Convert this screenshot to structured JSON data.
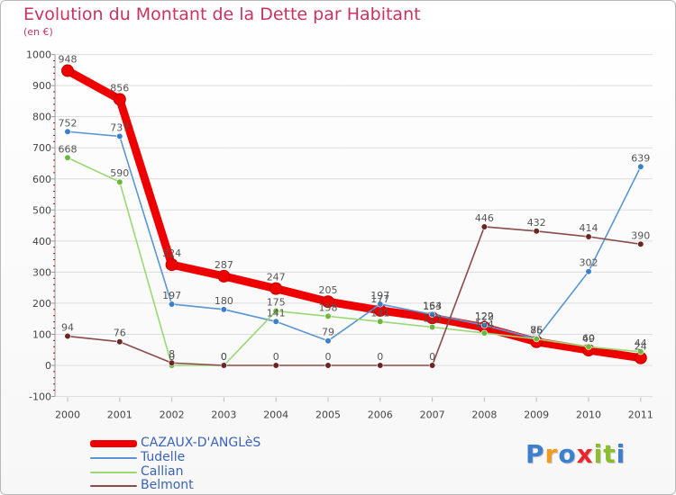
{
  "title": "Evolution du Montant de la Dette par Habitant",
  "unit": "(en €)",
  "logo": {
    "text": "Proxiti",
    "colors": [
      "#3d7fcf",
      "#f29b1d",
      "#3d7fcf",
      "#e8262b",
      "#8bbd2d",
      "#8bbd2d",
      "#3d7fcf"
    ]
  },
  "chart_data": {
    "type": "line",
    "title": "Evolution du Montant de la Dette par Habitant",
    "ylabel": "(en €)",
    "xlabel": "",
    "ylim": [
      -100,
      1000
    ],
    "yticks": [
      -100,
      0,
      100,
      200,
      300,
      400,
      500,
      600,
      700,
      800,
      900,
      1000
    ],
    "categories": [
      "2000",
      "2001",
      "2002",
      "2003",
      "2004",
      "2005",
      "2006",
      "2007",
      "2008",
      "2009",
      "2010",
      "2011"
    ],
    "series": [
      {
        "name": "CAZAUX-D'ANGLèS",
        "color": "#ee0000",
        "dot": "#ee0000",
        "bold": true,
        "values": [
          948,
          856,
          324,
          287,
          247,
          205,
          177,
          153,
          122,
          76,
          49,
          24
        ]
      },
      {
        "name": "Tudelle",
        "color": "#5a96d2",
        "dot": "#3c7fc8",
        "bold": false,
        "values": [
          752,
          737,
          197,
          180,
          141,
          79,
          197,
          164,
          129,
          86,
          302,
          639
        ]
      },
      {
        "name": "Callian",
        "color": "#9ad775",
        "dot": "#6ab93a",
        "bold": false,
        "values": [
          668,
          590,
          0,
          0,
          175,
          158,
          141,
          123,
          104,
          85,
          60,
          44
        ]
      },
      {
        "name": "Belmont",
        "color": "#8a4a4a",
        "dot": "#6b2525",
        "bold": false,
        "values": [
          94,
          76,
          8,
          0,
          0,
          0,
          0,
          0,
          446,
          432,
          414,
          390
        ]
      }
    ]
  }
}
